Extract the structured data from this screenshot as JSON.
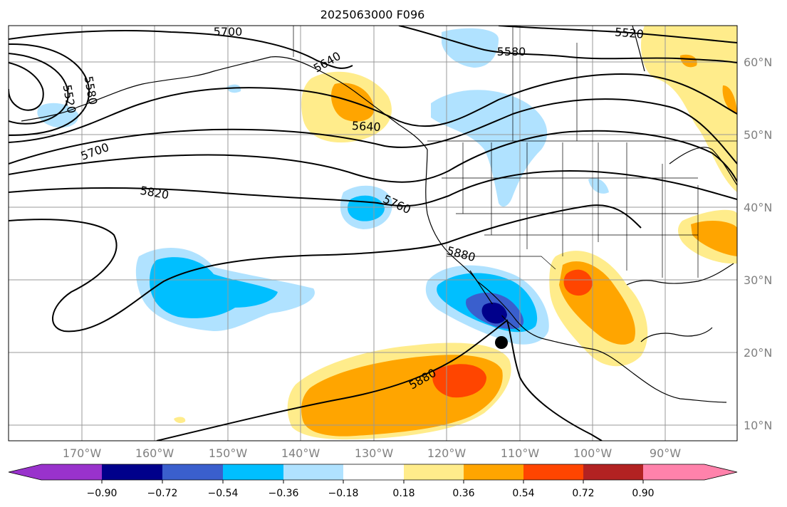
{
  "title": "2025063000 F096",
  "lon_labels": [
    "170°W",
    "160°W",
    "150°W",
    "140°W",
    "130°W",
    "120°W",
    "110°W",
    "100°W",
    "90°W"
  ],
  "lat_labels": [
    "60°N",
    "50°N",
    "40°N",
    "30°N",
    "20°N",
    "10°N"
  ],
  "contour_labels": [
    "5520",
    "5580",
    "5640",
    "5700",
    "5760",
    "5820",
    "5880",
    "5520",
    "5580",
    "5640",
    "5700",
    "5880"
  ],
  "colorbar": {
    "ticks": [
      "−0.90",
      "−0.72",
      "−0.54",
      "−0.36",
      "−0.18",
      "0.18",
      "0.36",
      "0.54",
      "0.72",
      "0.90"
    ],
    "colors": [
      "#9932cc",
      "#00008b",
      "#3a5fcd",
      "#00bfff",
      "#b0e2ff",
      "#ffffff",
      "#ffec8b",
      "#ffa500",
      "#ff4500",
      "#b22222",
      "#ff82ab"
    ]
  },
  "map_colors": {
    "strong_neg": "#00008b",
    "mid_neg": "#3a5fcd",
    "neg": "#00bfff",
    "weak_neg": "#b0e2ff",
    "weak_pos": "#ffec8b",
    "pos": "#ffa500",
    "strong_pos": "#ff4500"
  },
  "markers": [
    "storm-center-dot",
    "storm-center-dot"
  ]
}
